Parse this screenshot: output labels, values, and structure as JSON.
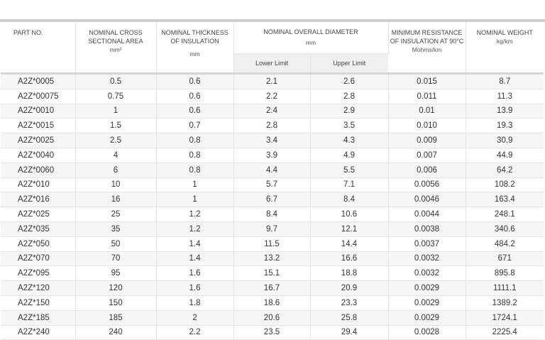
{
  "header": {
    "part": "PART NO.",
    "area": "NOMINAL CROSS SECTIONAL AREA",
    "area_unit": "mm²",
    "thickness": "NOMINAL THICKNESS OF INSULATION",
    "thickness_unit": "mm",
    "diameter": "NOMINAL OVERALL DIAMETER",
    "diameter_unit": "mm",
    "lower": "Lower Limit",
    "upper": "Upper Limit",
    "resistance": "MINIMUM RESISTANCE OF INSULATION AT 90°C",
    "resistance_unit": "Mohms/km",
    "weight": "NOMINAL WEIGHT",
    "weight_unit": "kg/km"
  },
  "rows": [
    [
      "A2Z*0005",
      "0.5",
      "0.6",
      "2.1",
      "2.6",
      "0.015",
      "8.7"
    ],
    [
      "A2Z*00075",
      "0.75",
      "0.6",
      "2.2",
      "2.8",
      "0.011",
      "11.3"
    ],
    [
      "A2Z*0010",
      "1",
      "0.6",
      "2.4",
      "2.9",
      "0.01",
      "13.9"
    ],
    [
      "A2Z*0015",
      "1.5",
      "0.7",
      "2.8",
      "3.5",
      "0.010",
      "19.3"
    ],
    [
      "A2Z*0025",
      "2.5",
      "0.8",
      "3.4",
      "4.3",
      "0.009",
      "30.9"
    ],
    [
      "A2Z*0040",
      "4",
      "0.8",
      "3.9",
      "4.9",
      "0.007",
      "44.9"
    ],
    [
      "A2Z*0060",
      "6",
      "0.8",
      "4.4",
      "5.5",
      "0.006",
      "64.2"
    ],
    [
      "A2Z*010",
      "10",
      "1",
      "5.7",
      "7.1",
      "0.0056",
      "108.2"
    ],
    [
      "A2Z*016",
      "16",
      "1",
      "6.7",
      "8.4",
      "0.0046",
      "163.4"
    ],
    [
      "A2Z*025",
      "25",
      "1.2",
      "8.4",
      "10.6",
      "0.0044",
      "248.1"
    ],
    [
      "A2Z*035",
      "35",
      "1.2",
      "9.7",
      "12.1",
      "0.0038",
      "340.6"
    ],
    [
      "A2Z*050",
      "50",
      "1.4",
      "11.5",
      "14.4",
      "0.0037",
      "484.2"
    ],
    [
      "A2Z*070",
      "70",
      "1.4",
      "13.2",
      "16.6",
      "0.0032",
      "671"
    ],
    [
      "A2Z*095",
      "95",
      "1.6",
      "15.1",
      "18.8",
      "0.0032",
      "895.8"
    ],
    [
      "A2Z*120",
      "120",
      "1.6",
      "16.7",
      "20.9",
      "0.0029",
      "1111.1"
    ],
    [
      "A2Z*150",
      "150",
      "1.8",
      "18.6",
      "23.3",
      "0.0029",
      "1389.2"
    ],
    [
      "A2Z*185",
      "185",
      "2",
      "20.6",
      "25.8",
      "0.0029",
      "1724.1"
    ],
    [
      "A2Z*240",
      "240",
      "2.2",
      "23.5",
      "29.4",
      "0.0028",
      "2225.4"
    ]
  ]
}
